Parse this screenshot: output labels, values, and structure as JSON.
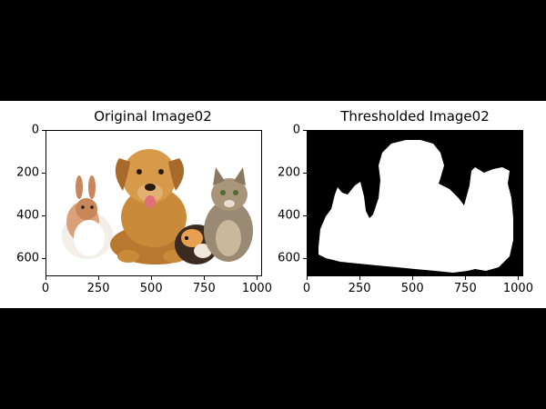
{
  "chart_data": [
    {
      "type": "image",
      "title": "Original Image02",
      "xlim": [
        0,
        1024
      ],
      "ylim": [
        683,
        0
      ],
      "xticks": [
        0,
        250,
        500,
        750,
        1000
      ],
      "yticks": [
        0,
        200,
        400,
        600
      ],
      "content": "photo of a rabbit, a puppy, a guinea pig and a kitten on white background"
    },
    {
      "type": "image",
      "title": "Thresholded Image02",
      "xlim": [
        0,
        1024
      ],
      "ylim": [
        683,
        0
      ],
      "xticks": [
        0,
        250,
        500,
        750,
        1000
      ],
      "yticks": [
        0,
        200,
        400,
        600
      ],
      "content": "binary mask: white silhouette of the animals on black background"
    }
  ],
  "colors": {
    "page_bg": "#000000",
    "figure_bg": "#ffffff",
    "mask_fg": "#ffffff",
    "mask_bg": "#000000",
    "puppy": "#c98a3a",
    "rabbit": "#d9a07a",
    "kitten": "#9a8a74",
    "guinea_pig": "#3a2a20"
  }
}
